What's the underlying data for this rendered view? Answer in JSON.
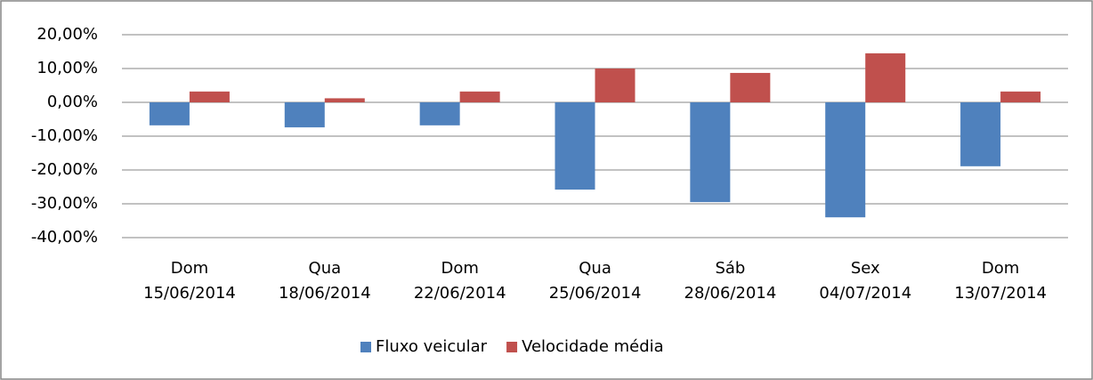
{
  "chart_data": {
    "type": "bar",
    "categories": [
      "Dom\n15/06/2014",
      "Qua\n18/06/2014",
      "Dom\n22/06/2014",
      "Qua\n25/06/2014",
      "Sáb\n28/06/2014",
      "Sex\n04/07/2014",
      "Dom\n13/07/2014"
    ],
    "series": [
      {
        "name": "Fluxo veicular",
        "color": "#4f81bd",
        "values": [
          -6.8,
          -7.4,
          -6.8,
          -25.8,
          -29.5,
          -34,
          -18.9
        ]
      },
      {
        "name": "Velocidade média",
        "color": "#c0504d",
        "values": [
          3.2,
          1.2,
          3.2,
          10,
          8.7,
          14.5,
          3.2
        ]
      }
    ],
    "ylim": [
      -40,
      20
    ],
    "yticks": [
      {
        "value": -40,
        "label": "-40,00%"
      },
      {
        "value": -30,
        "label": "-30,00%"
      },
      {
        "value": -20,
        "label": "-20,00%"
      },
      {
        "value": -10,
        "label": "-10,00%"
      },
      {
        "value": 0,
        "label": "0,00%"
      },
      {
        "value": 10,
        "label": "10,00%"
      },
      {
        "value": 20,
        "label": "20,00%"
      }
    ],
    "grid": true,
    "legend": "bottom"
  }
}
